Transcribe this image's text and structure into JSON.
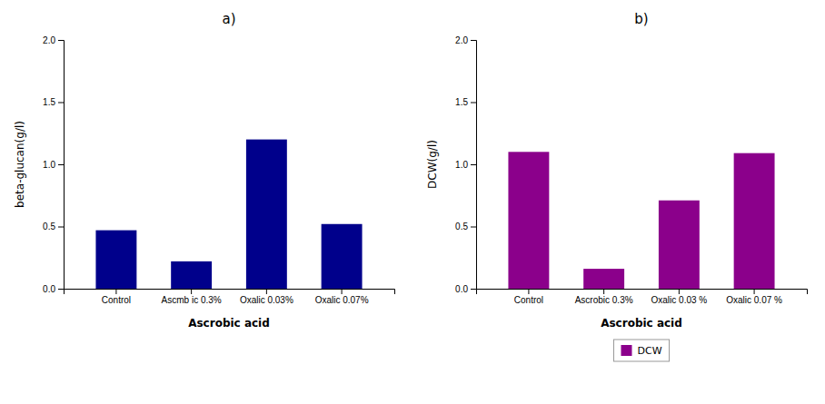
{
  "chart_data": [
    {
      "type": "bar",
      "title": "a)",
      "categories": [
        "Control",
        "Ascmb ic 0.3%",
        "Oxalic 0.03%",
        "Oxalic 0.07%"
      ],
      "values": [
        0.47,
        0.22,
        1.2,
        0.52
      ],
      "color": "#00008B",
      "xlabel": "Ascrobic acid",
      "ylabel": "beta-glucan(g/l)",
      "ylim": [
        0,
        2.0
      ],
      "yticks": [
        {
          "value": 0,
          "label": "0.0"
        },
        0.5,
        {
          "value": 1,
          "label": "1.0"
        },
        1.5,
        {
          "value": 2,
          "label": "2.0"
        }
      ],
      "grid": false
    },
    {
      "type": "bar",
      "title": "b)",
      "categories": [
        "Control",
        "Ascrobic 0.3%",
        "Oxalic 0.03 %",
        "Oxalic 0.07 %"
      ],
      "series": [
        {
          "name": "DCW",
          "color": "#8B008B",
          "values": [
            1.1,
            0.16,
            0.71,
            1.09
          ]
        }
      ],
      "xlabel": "Ascrobic acid",
      "ylabel": "DCW(g/l)",
      "ylim": [
        0,
        2.0
      ],
      "yticks": [
        {
          "value": 0,
          "label": "0.0"
        },
        0.5,
        {
          "value": 1,
          "label": "1.0"
        },
        1.5,
        {
          "value": 2,
          "label": "2.0"
        }
      ],
      "grid": false,
      "legend": "bottom"
    }
  ]
}
